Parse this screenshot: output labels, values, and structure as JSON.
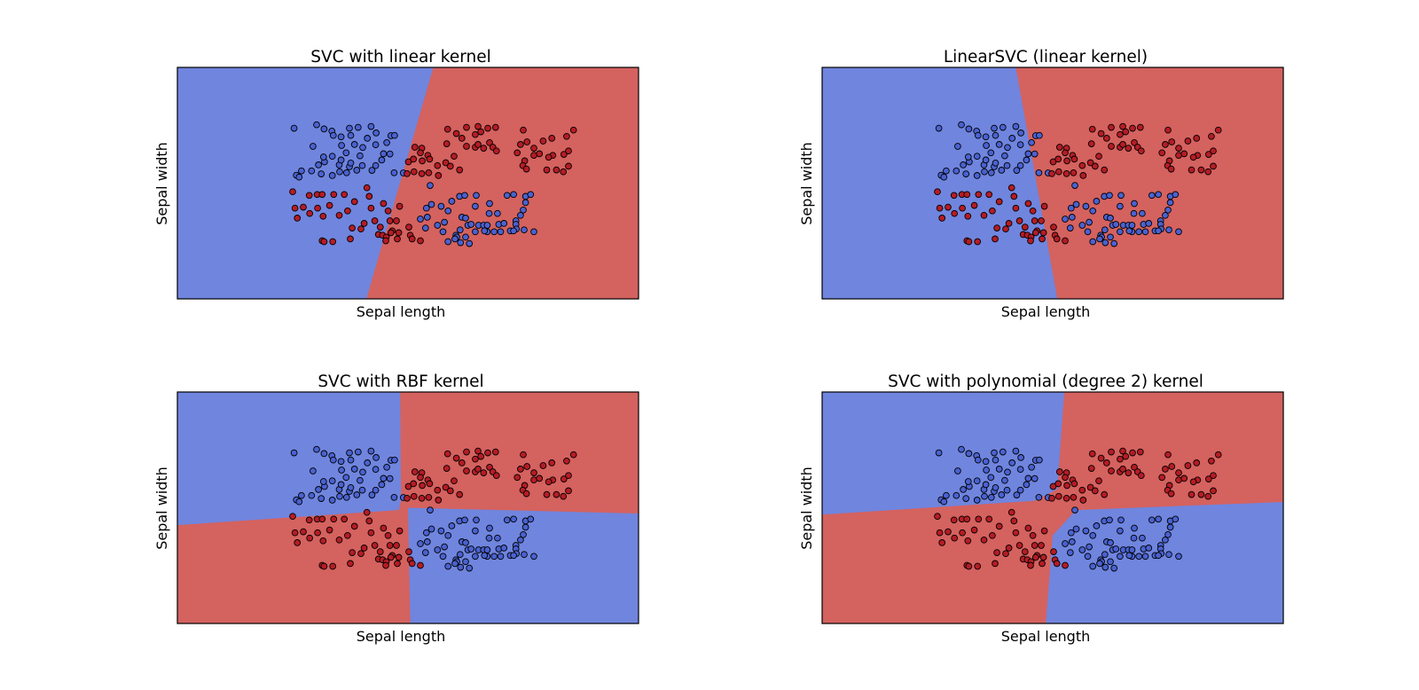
{
  "figure": {
    "class_colors": {
      "blue": "#7085de",
      "red": "#d4625f",
      "point_blue": "#4a62d0",
      "point_red": "#b51c25",
      "edge": "#000000"
    }
  },
  "chart_data": [
    {
      "type": "scatter",
      "title": "SVC with linear kernel",
      "xlabel": "Sepal length",
      "ylabel": "Sepal width",
      "xlim": [
        0,
        1
      ],
      "ylim": [
        0,
        1
      ],
      "xticks": [],
      "yticks": [],
      "grid": false,
      "legend": "none",
      "decision_regions": {
        "classes": [
          "blue",
          "red"
        ],
        "boundary": [
          [
            0.555,
            1.0
          ],
          [
            0.41,
            0.0
          ]
        ],
        "left_class": "blue",
        "right_class": "red"
      }
    },
    {
      "type": "scatter",
      "title": "LinearSVC (linear kernel)",
      "xlabel": "Sepal length",
      "ylabel": "Sepal width",
      "xlim": [
        0,
        1
      ],
      "ylim": [
        0,
        1
      ],
      "xticks": [],
      "yticks": [],
      "grid": false,
      "legend": "none",
      "decision_regions": {
        "classes": [
          "blue",
          "red"
        ],
        "boundary": [
          [
            0.42,
            1.0
          ],
          [
            0.51,
            0.0
          ]
        ],
        "left_class": "blue",
        "right_class": "red"
      }
    },
    {
      "type": "scatter",
      "title": "SVC with RBF kernel",
      "xlabel": "Sepal length",
      "ylabel": "Sepal width",
      "xlim": [
        0,
        1
      ],
      "ylim": [
        0,
        1
      ],
      "xticks": [],
      "yticks": [],
      "grid": false,
      "legend": "none",
      "decision_regions": {
        "classes": [
          "blue",
          "red"
        ],
        "quadrants": {
          "top_left": "blue",
          "top_right": "red",
          "bottom_left": "red",
          "bottom_right": "blue"
        },
        "vertical_boundary_top": [
          [
            0.483,
            1.0
          ],
          [
            0.485,
            0.53
          ]
        ],
        "vertical_boundary_bottom": [
          [
            0.5,
            0.51
          ],
          [
            0.505,
            0.0
          ]
        ],
        "horizontal_boundary_left": [
          [
            0.0,
            0.425
          ],
          [
            0.48,
            0.49
          ]
        ],
        "horizontal_boundary_right": [
          [
            0.5,
            0.5
          ],
          [
            1.0,
            0.475
          ]
        ]
      }
    },
    {
      "type": "scatter",
      "title": "SVC with polynomial (degree 2) kernel",
      "xlabel": "Sepal length",
      "ylabel": "Sepal width",
      "xlim": [
        0,
        1
      ],
      "ylim": [
        0,
        1
      ],
      "xticks": [],
      "yticks": [],
      "grid": false,
      "legend": "none",
      "decision_regions": {
        "classes": [
          "blue",
          "red"
        ],
        "quadrants": {
          "top_left": "blue",
          "top_right": "red",
          "bottom_left": "red",
          "bottom_right": "blue"
        },
        "vertical_boundary_top": [
          [
            0.525,
            1.0
          ],
          [
            0.51,
            0.58
          ]
        ],
        "vertical_boundary_bottom": [
          [
            0.5,
            0.38
          ],
          [
            0.485,
            0.0
          ]
        ],
        "horizontal_boundary_left": [
          [
            0.0,
            0.47
          ],
          [
            0.46,
            0.53
          ]
        ],
        "horizontal_boundary_right": [
          [
            0.55,
            0.49
          ],
          [
            1.0,
            0.525
          ]
        ]
      }
    }
  ],
  "points": [
    {
      "x": 0.253,
      "y": 0.737,
      "c": "blue"
    },
    {
      "x": 0.302,
      "y": 0.752,
      "c": "blue"
    },
    {
      "x": 0.318,
      "y": 0.734,
      "c": "blue"
    },
    {
      "x": 0.335,
      "y": 0.725,
      "c": "blue"
    },
    {
      "x": 0.373,
      "y": 0.737,
      "c": "blue"
    },
    {
      "x": 0.392,
      "y": 0.741,
      "c": "blue"
    },
    {
      "x": 0.42,
      "y": 0.745,
      "c": "blue"
    },
    {
      "x": 0.431,
      "y": 0.717,
      "c": "blue"
    },
    {
      "x": 0.463,
      "y": 0.705,
      "c": "blue"
    },
    {
      "x": 0.471,
      "y": 0.706,
      "c": "blue"
    },
    {
      "x": 0.454,
      "y": 0.675,
      "c": "blue"
    },
    {
      "x": 0.412,
      "y": 0.694,
      "c": "blue"
    },
    {
      "x": 0.376,
      "y": 0.706,
      "c": "blue"
    },
    {
      "x": 0.355,
      "y": 0.7,
      "c": "blue"
    },
    {
      "x": 0.338,
      "y": 0.706,
      "c": "blue"
    },
    {
      "x": 0.294,
      "y": 0.659,
      "c": "blue"
    },
    {
      "x": 0.356,
      "y": 0.663,
      "c": "blue"
    },
    {
      "x": 0.384,
      "y": 0.667,
      "c": "blue"
    },
    {
      "x": 0.402,
      "y": 0.654,
      "c": "blue"
    },
    {
      "x": 0.43,
      "y": 0.666,
      "c": "blue"
    },
    {
      "x": 0.366,
      "y": 0.631,
      "c": "blue"
    },
    {
      "x": 0.396,
      "y": 0.618,
      "c": "blue"
    },
    {
      "x": 0.447,
      "y": 0.627,
      "c": "blue"
    },
    {
      "x": 0.461,
      "y": 0.626,
      "c": "blue"
    },
    {
      "x": 0.319,
      "y": 0.592,
      "c": "blue"
    },
    {
      "x": 0.317,
      "y": 0.613,
      "c": "blue"
    },
    {
      "x": 0.336,
      "y": 0.616,
      "c": "blue"
    },
    {
      "x": 0.306,
      "y": 0.579,
      "c": "blue"
    },
    {
      "x": 0.351,
      "y": 0.579,
      "c": "blue"
    },
    {
      "x": 0.355,
      "y": 0.6,
      "c": "blue"
    },
    {
      "x": 0.373,
      "y": 0.571,
      "c": "blue"
    },
    {
      "x": 0.376,
      "y": 0.587,
      "c": "blue"
    },
    {
      "x": 0.401,
      "y": 0.576,
      "c": "blue"
    },
    {
      "x": 0.43,
      "y": 0.576,
      "c": "blue"
    },
    {
      "x": 0.443,
      "y": 0.6,
      "c": "blue"
    },
    {
      "x": 0.389,
      "y": 0.556,
      "c": "blue"
    },
    {
      "x": 0.258,
      "y": 0.534,
      "c": "blue"
    },
    {
      "x": 0.269,
      "y": 0.553,
      "c": "blue"
    },
    {
      "x": 0.291,
      "y": 0.553,
      "c": "blue"
    },
    {
      "x": 0.312,
      "y": 0.54,
      "c": "blue"
    },
    {
      "x": 0.336,
      "y": 0.533,
      "c": "blue"
    },
    {
      "x": 0.352,
      "y": 0.549,
      "c": "blue"
    },
    {
      "x": 0.367,
      "y": 0.545,
      "c": "blue"
    },
    {
      "x": 0.422,
      "y": 0.555,
      "c": "blue"
    },
    {
      "x": 0.47,
      "y": 0.545,
      "c": "blue"
    },
    {
      "x": 0.49,
      "y": 0.544,
      "c": "blue"
    },
    {
      "x": 0.264,
      "y": 0.526,
      "c": "blue"
    },
    {
      "x": 0.527,
      "y": 0.345,
      "c": "blue"
    },
    {
      "x": 0.54,
      "y": 0.392,
      "c": "blue"
    },
    {
      "x": 0.572,
      "y": 0.4,
      "c": "blue"
    },
    {
      "x": 0.595,
      "y": 0.422,
      "c": "blue"
    },
    {
      "x": 0.612,
      "y": 0.443,
      "c": "blue"
    },
    {
      "x": 0.623,
      "y": 0.447,
      "c": "blue"
    },
    {
      "x": 0.648,
      "y": 0.447,
      "c": "blue"
    },
    {
      "x": 0.715,
      "y": 0.447,
      "c": "blue"
    },
    {
      "x": 0.729,
      "y": 0.451,
      "c": "blue"
    },
    {
      "x": 0.755,
      "y": 0.443,
      "c": "blue"
    },
    {
      "x": 0.766,
      "y": 0.451,
      "c": "blue"
    },
    {
      "x": 0.551,
      "y": 0.408,
      "c": "blue"
    },
    {
      "x": 0.587,
      "y": 0.38,
      "c": "blue"
    },
    {
      "x": 0.646,
      "y": 0.4,
      "c": "blue"
    },
    {
      "x": 0.677,
      "y": 0.412,
      "c": "blue"
    },
    {
      "x": 0.542,
      "y": 0.353,
      "c": "blue"
    },
    {
      "x": 0.579,
      "y": 0.331,
      "c": "blue"
    },
    {
      "x": 0.617,
      "y": 0.353,
      "c": "blue"
    },
    {
      "x": 0.625,
      "y": 0.349,
      "c": "blue"
    },
    {
      "x": 0.734,
      "y": 0.337,
      "c": "blue"
    },
    {
      "x": 0.744,
      "y": 0.361,
      "c": "blue"
    },
    {
      "x": 0.75,
      "y": 0.384,
      "c": "blue"
    },
    {
      "x": 0.755,
      "y": 0.416,
      "c": "blue"
    },
    {
      "x": 0.676,
      "y": 0.369,
      "c": "blue"
    },
    {
      "x": 0.694,
      "y": 0.369,
      "c": "blue"
    },
    {
      "x": 0.576,
      "y": 0.29,
      "c": "blue"
    },
    {
      "x": 0.613,
      "y": 0.298,
      "c": "blue"
    },
    {
      "x": 0.63,
      "y": 0.318,
      "c": "blue"
    },
    {
      "x": 0.637,
      "y": 0.322,
      "c": "blue"
    },
    {
      "x": 0.653,
      "y": 0.318,
      "c": "blue"
    },
    {
      "x": 0.664,
      "y": 0.318,
      "c": "blue"
    },
    {
      "x": 0.672,
      "y": 0.318,
      "c": "blue"
    },
    {
      "x": 0.697,
      "y": 0.322,
      "c": "blue"
    },
    {
      "x": 0.708,
      "y": 0.326,
      "c": "blue"
    },
    {
      "x": 0.734,
      "y": 0.322,
      "c": "blue"
    },
    {
      "x": 0.538,
      "y": 0.306,
      "c": "blue"
    },
    {
      "x": 0.564,
      "y": 0.318,
      "c": "blue"
    },
    {
      "x": 0.604,
      "y": 0.275,
      "c": "blue"
    },
    {
      "x": 0.606,
      "y": 0.267,
      "c": "blue"
    },
    {
      "x": 0.625,
      "y": 0.267,
      "c": "blue"
    },
    {
      "x": 0.672,
      "y": 0.29,
      "c": "blue"
    },
    {
      "x": 0.687,
      "y": 0.29,
      "c": "blue"
    },
    {
      "x": 0.701,
      "y": 0.29,
      "c": "blue"
    },
    {
      "x": 0.722,
      "y": 0.294,
      "c": "blue"
    },
    {
      "x": 0.735,
      "y": 0.302,
      "c": "blue"
    },
    {
      "x": 0.752,
      "y": 0.298,
      "c": "blue"
    },
    {
      "x": 0.773,
      "y": 0.29,
      "c": "blue"
    },
    {
      "x": 0.587,
      "y": 0.247,
      "c": "blue"
    },
    {
      "x": 0.602,
      "y": 0.259,
      "c": "blue"
    },
    {
      "x": 0.614,
      "y": 0.243,
      "c": "blue"
    },
    {
      "x": 0.633,
      "y": 0.239,
      "c": "blue"
    },
    {
      "x": 0.646,
      "y": 0.29,
      "c": "blue"
    },
    {
      "x": 0.666,
      "y": 0.294,
      "c": "blue"
    },
    {
      "x": 0.729,
      "y": 0.294,
      "c": "blue"
    },
    {
      "x": 0.548,
      "y": 0.49,
      "c": "blue"
    },
    {
      "x": 0.515,
      "y": 0.655,
      "c": "red"
    },
    {
      "x": 0.53,
      "y": 0.651,
      "c": "red"
    },
    {
      "x": 0.584,
      "y": 0.67,
      "c": "red"
    },
    {
      "x": 0.6,
      "y": 0.616,
      "c": "red"
    },
    {
      "x": 0.627,
      "y": 0.659,
      "c": "red"
    },
    {
      "x": 0.646,
      "y": 0.71,
      "c": "red"
    },
    {
      "x": 0.646,
      "y": 0.655,
      "c": "red"
    },
    {
      "x": 0.652,
      "y": 0.667,
      "c": "red"
    },
    {
      "x": 0.664,
      "y": 0.651,
      "c": "red"
    },
    {
      "x": 0.677,
      "y": 0.675,
      "c": "red"
    },
    {
      "x": 0.684,
      "y": 0.655,
      "c": "red"
    },
    {
      "x": 0.692,
      "y": 0.639,
      "c": "red"
    },
    {
      "x": 0.605,
      "y": 0.714,
      "c": "red"
    },
    {
      "x": 0.627,
      "y": 0.741,
      "c": "red"
    },
    {
      "x": 0.652,
      "y": 0.745,
      "c": "red"
    },
    {
      "x": 0.673,
      "y": 0.737,
      "c": "red"
    },
    {
      "x": 0.69,
      "y": 0.741,
      "c": "red"
    },
    {
      "x": 0.658,
      "y": 0.722,
      "c": "red"
    },
    {
      "x": 0.586,
      "y": 0.733,
      "c": "red"
    },
    {
      "x": 0.617,
      "y": 0.694,
      "c": "red"
    },
    {
      "x": 0.75,
      "y": 0.729,
      "c": "red"
    },
    {
      "x": 0.737,
      "y": 0.631,
      "c": "red"
    },
    {
      "x": 0.753,
      "y": 0.596,
      "c": "red"
    },
    {
      "x": 0.749,
      "y": 0.576,
      "c": "red"
    },
    {
      "x": 0.773,
      "y": 0.62,
      "c": "red"
    },
    {
      "x": 0.785,
      "y": 0.627,
      "c": "red"
    },
    {
      "x": 0.773,
      "y": 0.651,
      "c": "red"
    },
    {
      "x": 0.758,
      "y": 0.678,
      "c": "red"
    },
    {
      "x": 0.793,
      "y": 0.682,
      "c": "red"
    },
    {
      "x": 0.812,
      "y": 0.694,
      "c": "red"
    },
    {
      "x": 0.814,
      "y": 0.62,
      "c": "red"
    },
    {
      "x": 0.805,
      "y": 0.612,
      "c": "red"
    },
    {
      "x": 0.757,
      "y": 0.561,
      "c": "red"
    },
    {
      "x": 0.801,
      "y": 0.557,
      "c": "red"
    },
    {
      "x": 0.822,
      "y": 0.557,
      "c": "red"
    },
    {
      "x": 0.837,
      "y": 0.549,
      "c": "red"
    },
    {
      "x": 0.838,
      "y": 0.624,
      "c": "red"
    },
    {
      "x": 0.848,
      "y": 0.573,
      "c": "red"
    },
    {
      "x": 0.848,
      "y": 0.639,
      "c": "red"
    },
    {
      "x": 0.844,
      "y": 0.702,
      "c": "red"
    },
    {
      "x": 0.859,
      "y": 0.729,
      "c": "red"
    },
    {
      "x": 0.744,
      "y": 0.667,
      "c": "red"
    },
    {
      "x": 0.501,
      "y": 0.592,
      "c": "red"
    },
    {
      "x": 0.512,
      "y": 0.604,
      "c": "red"
    },
    {
      "x": 0.531,
      "y": 0.596,
      "c": "red"
    },
    {
      "x": 0.527,
      "y": 0.631,
      "c": "red"
    },
    {
      "x": 0.543,
      "y": 0.62,
      "c": "red"
    },
    {
      "x": 0.547,
      "y": 0.604,
      "c": "red"
    },
    {
      "x": 0.564,
      "y": 0.576,
      "c": "red"
    },
    {
      "x": 0.582,
      "y": 0.588,
      "c": "red"
    },
    {
      "x": 0.612,
      "y": 0.557,
      "c": "red"
    },
    {
      "x": 0.498,
      "y": 0.541,
      "c": "red"
    },
    {
      "x": 0.513,
      "y": 0.549,
      "c": "red"
    },
    {
      "x": 0.53,
      "y": 0.541,
      "c": "red"
    },
    {
      "x": 0.545,
      "y": 0.545,
      "c": "red"
    },
    {
      "x": 0.566,
      "y": 0.533,
      "c": "red"
    },
    {
      "x": 0.592,
      "y": 0.573,
      "c": "red"
    },
    {
      "x": 0.25,
      "y": 0.463,
      "c": "red"
    },
    {
      "x": 0.286,
      "y": 0.447,
      "c": "red"
    },
    {
      "x": 0.303,
      "y": 0.451,
      "c": "red"
    },
    {
      "x": 0.314,
      "y": 0.451,
      "c": "red"
    },
    {
      "x": 0.339,
      "y": 0.451,
      "c": "red"
    },
    {
      "x": 0.362,
      "y": 0.451,
      "c": "red"
    },
    {
      "x": 0.411,
      "y": 0.48,
      "c": "red"
    },
    {
      "x": 0.416,
      "y": 0.443,
      "c": "red"
    },
    {
      "x": 0.447,
      "y": 0.412,
      "c": "red"
    },
    {
      "x": 0.255,
      "y": 0.392,
      "c": "red"
    },
    {
      "x": 0.26,
      "y": 0.349,
      "c": "red"
    },
    {
      "x": 0.273,
      "y": 0.396,
      "c": "red"
    },
    {
      "x": 0.287,
      "y": 0.369,
      "c": "red"
    },
    {
      "x": 0.304,
      "y": 0.392,
      "c": "red"
    },
    {
      "x": 0.316,
      "y": 0.357,
      "c": "red"
    },
    {
      "x": 0.33,
      "y": 0.404,
      "c": "red"
    },
    {
      "x": 0.351,
      "y": 0.361,
      "c": "red"
    },
    {
      "x": 0.369,
      "y": 0.38,
      "c": "red"
    },
    {
      "x": 0.384,
      "y": 0.42,
      "c": "red"
    },
    {
      "x": 0.42,
      "y": 0.392,
      "c": "red"
    },
    {
      "x": 0.457,
      "y": 0.38,
      "c": "red"
    },
    {
      "x": 0.428,
      "y": 0.337,
      "c": "red"
    },
    {
      "x": 0.405,
      "y": 0.326,
      "c": "red"
    },
    {
      "x": 0.379,
      "y": 0.306,
      "c": "red"
    },
    {
      "x": 0.398,
      "y": 0.302,
      "c": "red"
    },
    {
      "x": 0.44,
      "y": 0.31,
      "c": "red"
    },
    {
      "x": 0.461,
      "y": 0.337,
      "c": "red"
    },
    {
      "x": 0.466,
      "y": 0.294,
      "c": "red"
    },
    {
      "x": 0.475,
      "y": 0.337,
      "c": "red"
    },
    {
      "x": 0.436,
      "y": 0.278,
      "c": "red"
    },
    {
      "x": 0.445,
      "y": 0.275,
      "c": "red"
    },
    {
      "x": 0.453,
      "y": 0.267,
      "c": "red"
    },
    {
      "x": 0.463,
      "y": 0.286,
      "c": "red"
    },
    {
      "x": 0.48,
      "y": 0.286,
      "c": "red"
    },
    {
      "x": 0.505,
      "y": 0.275,
      "c": "red"
    },
    {
      "x": 0.452,
      "y": 0.251,
      "c": "red"
    },
    {
      "x": 0.477,
      "y": 0.259,
      "c": "red"
    },
    {
      "x": 0.509,
      "y": 0.259,
      "c": "red"
    },
    {
      "x": 0.527,
      "y": 0.251,
      "c": "red"
    },
    {
      "x": 0.314,
      "y": 0.251,
      "c": "red"
    },
    {
      "x": 0.318,
      "y": 0.247,
      "c": "red"
    },
    {
      "x": 0.337,
      "y": 0.247,
      "c": "red"
    },
    {
      "x": 0.375,
      "y": 0.259,
      "c": "red"
    },
    {
      "x": 0.482,
      "y": 0.4,
      "c": "red"
    },
    {
      "x": 0.502,
      "y": 0.31,
      "c": "red"
    }
  ]
}
